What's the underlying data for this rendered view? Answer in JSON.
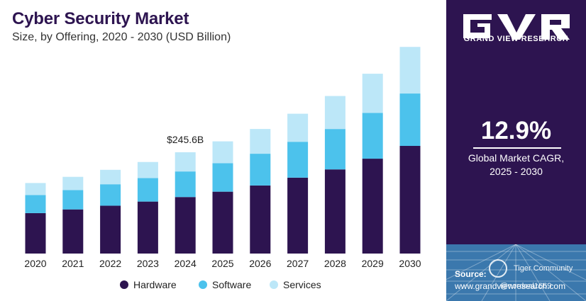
{
  "header": {
    "title": "Cyber Security Market",
    "subtitle": "Size, by Offering, 2020 - 2030 (USD Billion)"
  },
  "chart_data": {
    "type": "bar",
    "stacked": true,
    "categories": [
      "2020",
      "2021",
      "2022",
      "2023",
      "2024",
      "2025",
      "2026",
      "2027",
      "2028",
      "2029",
      "2030"
    ],
    "series": [
      {
        "name": "Hardware",
        "color": "#2d1450",
        "values": [
          98,
          107,
          116,
          126,
          137,
          150,
          165,
          184,
          204,
          230,
          261
        ]
      },
      {
        "name": "Software",
        "color": "#4cc2ec",
        "values": [
          44,
          47,
          52,
          57,
          62,
          69,
          77,
          87,
          98,
          111,
          127
        ]
      },
      {
        "name": "Services",
        "color": "#bce7f8",
        "values": [
          29,
          32,
          35,
          39,
          46.6,
          53,
          60,
          68,
          80,
          95,
          113
        ]
      }
    ],
    "annotations": [
      {
        "category": "2024",
        "label": "$245.6B"
      }
    ],
    "ylim": [
      0,
      510
    ],
    "grid": false,
    "legend": "bottom-center",
    "xlabel": "",
    "ylabel": ""
  },
  "sidebar": {
    "brand": "GRAND VIEW RESEARCH",
    "cagr_value": "12.9%",
    "cagr_caption_line1": "Global Market CAGR,",
    "cagr_caption_line2": "2025 - 2030",
    "source_label": "Source:",
    "source_url": "www.grandviewresearch.com",
    "watermark_line1": "Tiger Community",
    "watermark_line2": "@nordeal1669"
  },
  "colors": {
    "panel_bg": "#2d1450",
    "band_bg": "#3b78ad",
    "hardware": "#2d1450",
    "software": "#4cc2ec",
    "services": "#bce7f8"
  }
}
